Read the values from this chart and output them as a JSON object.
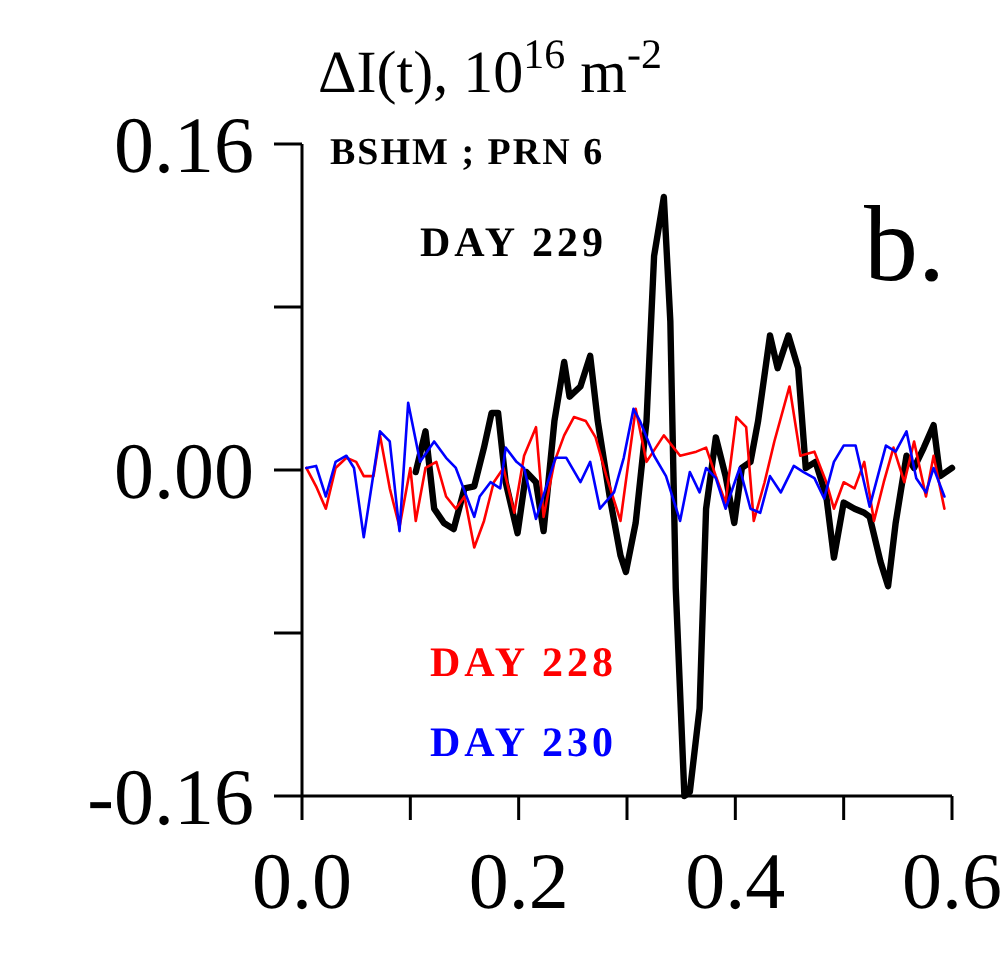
{
  "chart_data": {
    "type": "line",
    "ylabel": "ΔI(t), 10$^{16}$ m$^{-2}$",
    "annotations": [
      "BSHM ; PRN 6",
      "b."
    ],
    "xlim": [
      0,
      0.6
    ],
    "ylim": [
      -0.16,
      0.16
    ],
    "xticks": [
      {
        "value": 0,
        "label": "0.0"
      },
      {
        "value": 0.1,
        "label": null
      },
      {
        "value": 0.2,
        "label": "0.2"
      },
      {
        "value": 0.3,
        "label": null
      },
      {
        "value": 0.4,
        "label": "0.4"
      },
      {
        "value": 0.5,
        "label": null
      },
      {
        "value": 0.6,
        "label": "0.6"
      }
    ],
    "yticks": [
      {
        "value": -0.16,
        "label": "-0.16"
      },
      {
        "value": -0.08,
        "label": null
      },
      {
        "value": 0,
        "label": "0.00"
      },
      {
        "value": 0.08,
        "label": null
      },
      {
        "value": 0.16,
        "label": "0.16"
      }
    ],
    "grid": false,
    "marker": "none",
    "line_style": "solid",
    "series": [
      {
        "name": "DAY 229",
        "color": "#000000",
        "x": [
          0.105,
          0.114,
          0.122,
          0.131,
          0.14,
          0.15,
          0.159,
          0.168,
          0.175,
          0.181,
          0.188,
          0.199,
          0.207,
          0.216,
          0.223,
          0.233,
          0.242,
          0.247,
          0.257,
          0.266,
          0.273,
          0.284,
          0.294,
          0.299,
          0.308,
          0.318,
          0.325,
          0.334,
          0.34,
          0.345,
          0.353,
          0.358,
          0.367,
          0.373,
          0.382,
          0.391,
          0.399,
          0.406,
          0.414,
          0.421,
          0.432,
          0.439,
          0.449,
          0.458,
          0.465,
          0.474,
          0.484,
          0.491,
          0.5,
          0.51,
          0.519,
          0.524,
          0.534,
          0.541,
          0.548,
          0.558,
          0.565,
          0.574,
          0.583,
          0.589,
          0.6
        ],
        "values": [
          -0.001,
          0.019,
          -0.019,
          -0.026,
          -0.029,
          -0.009,
          -0.008,
          0.011,
          0.028,
          0.028,
          -0.006,
          -0.031,
          -0.001,
          -0.006,
          -0.03,
          0.024,
          0.053,
          0.036,
          0.041,
          0.056,
          0.024,
          -0.013,
          -0.042,
          -0.05,
          -0.026,
          0.024,
          0.105,
          0.134,
          0.073,
          -0.058,
          -0.16,
          -0.158,
          -0.117,
          -0.019,
          0.016,
          -0.003,
          -0.026,
          0.001,
          0.004,
          0.024,
          0.066,
          0.05,
          0.066,
          0.05,
          0.001,
          0.004,
          -0.013,
          -0.043,
          -0.016,
          -0.019,
          -0.021,
          -0.023,
          -0.045,
          -0.057,
          -0.026,
          0.007,
          0.001,
          0.011,
          0.022,
          -0.003,
          0.001
        ]
      },
      {
        "name": "DAY 228",
        "color": "#ff0000",
        "x": [
          0.004,
          0.013,
          0.022,
          0.031,
          0.041,
          0.05,
          0.057,
          0.066,
          0.072,
          0.081,
          0.09,
          0.1,
          0.105,
          0.114,
          0.124,
          0.133,
          0.142,
          0.15,
          0.159,
          0.168,
          0.177,
          0.186,
          0.196,
          0.205,
          0.216,
          0.223,
          0.233,
          0.242,
          0.251,
          0.262,
          0.271,
          0.281,
          0.294,
          0.308,
          0.318,
          0.334,
          0.349,
          0.364,
          0.373,
          0.382,
          0.391,
          0.401,
          0.41,
          0.417,
          0.427,
          0.436,
          0.45,
          0.46,
          0.473,
          0.484,
          0.491,
          0.5,
          0.51,
          0.519,
          0.528,
          0.537,
          0.546,
          0.556,
          0.565,
          0.576,
          0.583,
          0.593
        ],
        "values": [
          0.001,
          -0.008,
          -0.019,
          0.001,
          0.006,
          0.004,
          -0.003,
          -0.003,
          0.017,
          -0.009,
          -0.028,
          0.001,
          -0.025,
          0.001,
          0.004,
          -0.013,
          -0.019,
          -0.013,
          -0.038,
          -0.025,
          -0.006,
          0.001,
          -0.021,
          0.007,
          0.021,
          -0.023,
          0.004,
          0.017,
          0.026,
          0.024,
          0.016,
          -0.003,
          -0.025,
          0.03,
          0.004,
          0.017,
          0.007,
          0.009,
          0.011,
          -0.003,
          -0.016,
          0.026,
          0.021,
          -0.025,
          -0.006,
          0.014,
          0.041,
          0.007,
          0.009,
          -0.006,
          -0.019,
          -0.006,
          -0.009,
          0.004,
          -0.025,
          -0.006,
          0.011,
          -0.006,
          0.014,
          -0.013,
          0.007,
          -0.019
        ]
      },
      {
        "name": "DAY 230",
        "color": "#0000ff",
        "x": [
          0.004,
          0.013,
          0.022,
          0.031,
          0.041,
          0.048,
          0.057,
          0.072,
          0.081,
          0.09,
          0.098,
          0.109,
          0.122,
          0.133,
          0.142,
          0.159,
          0.164,
          0.174,
          0.183,
          0.188,
          0.198,
          0.205,
          0.216,
          0.225,
          0.234,
          0.244,
          0.257,
          0.266,
          0.275,
          0.288,
          0.297,
          0.306,
          0.312,
          0.325,
          0.336,
          0.349,
          0.358,
          0.367,
          0.373,
          0.382,
          0.391,
          0.404,
          0.414,
          0.423,
          0.432,
          0.442,
          0.454,
          0.463,
          0.473,
          0.482,
          0.491,
          0.5,
          0.511,
          0.524,
          0.539,
          0.548,
          0.558,
          0.567,
          0.576,
          0.583,
          0.593
        ],
        "values": [
          0.001,
          0.002,
          -0.013,
          0.004,
          0.007,
          0.001,
          -0.033,
          0.019,
          0.014,
          -0.03,
          0.033,
          0.004,
          0.014,
          0.006,
          0.001,
          -0.023,
          -0.013,
          -0.006,
          -0.009,
          0.011,
          0.004,
          0.001,
          -0.024,
          -0.009,
          0.006,
          0.006,
          -0.006,
          0.004,
          -0.019,
          -0.011,
          0.006,
          0.03,
          0.024,
          0.007,
          -0.003,
          -0.025,
          -0.001,
          -0.011,
          0.001,
          -0.004,
          -0.019,
          0.001,
          -0.019,
          -0.021,
          -0.003,
          -0.011,
          0.002,
          -0.001,
          -0.004,
          -0.014,
          0.004,
          0.012,
          0.012,
          -0.018,
          0.012,
          0.009,
          0.019,
          -0.004,
          -0.011,
          0.001,
          -0.013
        ]
      }
    ]
  }
}
